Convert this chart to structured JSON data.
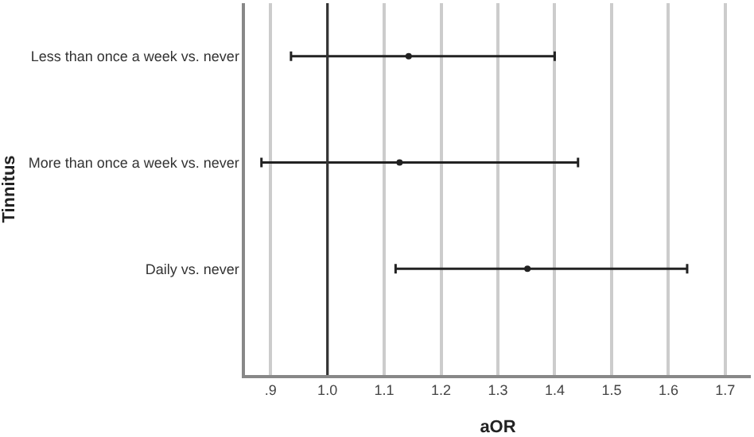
{
  "chart_data": {
    "type": "scatter",
    "orientation": "horizontal",
    "xlabel": "aOR",
    "ylabel": "Tinnitus",
    "categories": [
      "Less than once a week vs. never",
      "More than once a week vs. never",
      "Daily vs. never"
    ],
    "values": [
      1.143,
      1.127,
      1.352
    ],
    "errors": [
      [
        0.936,
        1.4
      ],
      [
        0.884,
        1.441
      ],
      [
        1.12,
        1.633
      ]
    ],
    "color": "#222222",
    "marker": "circle",
    "xlim": [
      0.855,
      1.745
    ],
    "xticks": [
      {
        "value": 0.9,
        "label": ".9"
      },
      {
        "value": 1.0,
        "label": "1.0"
      },
      {
        "value": 1.1,
        "label": "1.1"
      },
      {
        "value": 1.2,
        "label": "1.2"
      },
      {
        "value": 1.3,
        "label": "1.3"
      },
      {
        "value": 1.4,
        "label": "1.4"
      },
      {
        "value": 1.5,
        "label": "1.5"
      },
      {
        "value": 1.6,
        "label": "1.6"
      },
      {
        "value": 1.7,
        "label": "1.7"
      }
    ],
    "ref_lines": [
      {
        "axis": "x",
        "value": 1.0,
        "color": "#333333"
      }
    ],
    "grid": "x",
    "legend": false
  }
}
